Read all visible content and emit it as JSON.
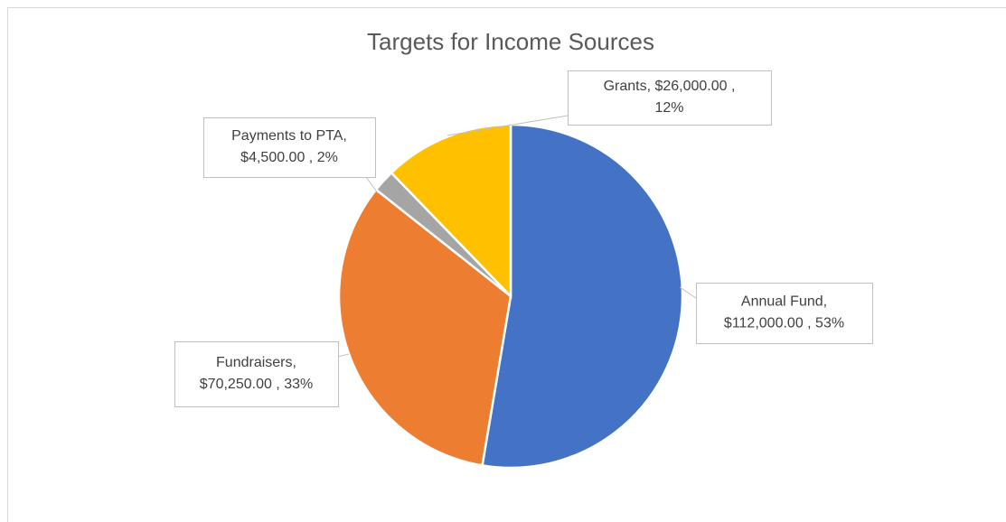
{
  "chart_data": {
    "type": "pie",
    "title": "Targets for Income Sources",
    "categories": [
      "Annual Fund",
      "Fundraisers",
      "Payments to PTA",
      "Grants"
    ],
    "values": [
      112000,
      70250,
      4500,
      26000
    ],
    "colors": [
      "#4472c4",
      "#ed7d31",
      "#a5a5a5",
      "#ffc000"
    ],
    "value_labels": [
      [
        "Annual Fund,",
        "$112,000.00 , 53%"
      ],
      [
        "Fundraisers,",
        "$70,250.00 , 33%"
      ],
      [
        "Payments to PTA,",
        "$4,500.00 , 2%"
      ],
      [
        "Grants,  $26,000.00 ,",
        "12%"
      ]
    ]
  }
}
